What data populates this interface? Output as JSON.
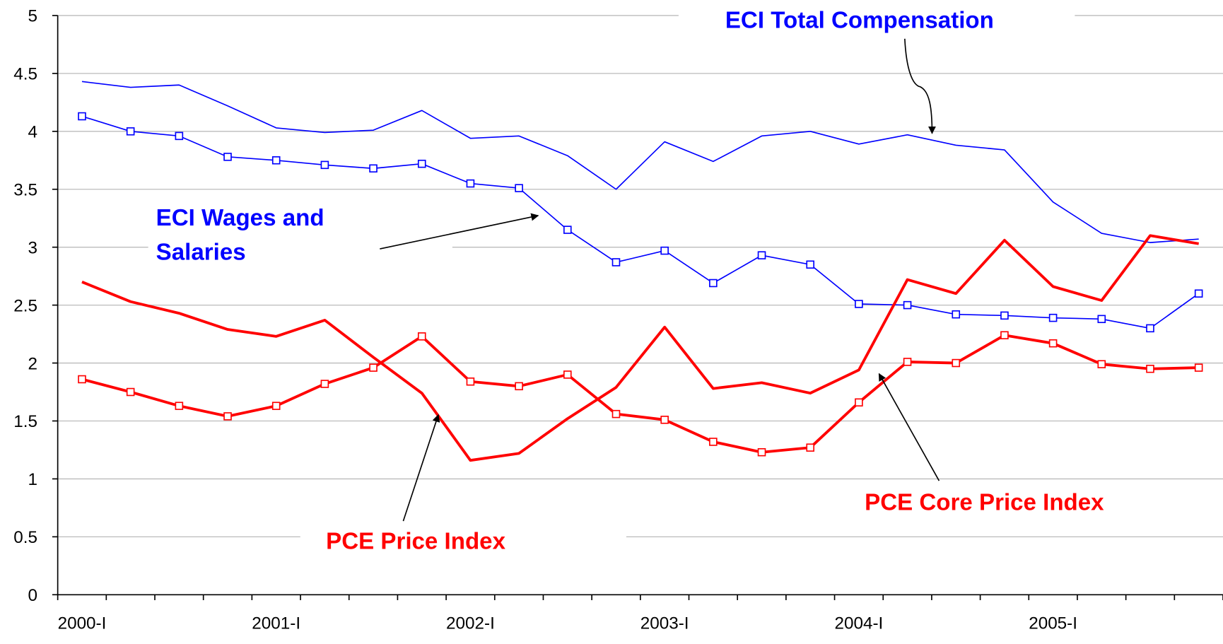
{
  "chart_data": {
    "type": "line",
    "categories": [
      "2000-I",
      null,
      null,
      null,
      "2001-I",
      null,
      null,
      null,
      "2002-I",
      null,
      null,
      null,
      "2003-I",
      null,
      null,
      null,
      "2004-I",
      null,
      null,
      null,
      "2005-I",
      null,
      null,
      null
    ],
    "series": [
      {
        "name": "ECI Total Compensation",
        "color": "#0000ff",
        "marker": false,
        "width": 1.5,
        "values": [
          4.43,
          4.38,
          4.4,
          4.22,
          4.03,
          3.99,
          4.01,
          4.18,
          3.94,
          3.96,
          3.79,
          3.5,
          3.91,
          3.74,
          3.96,
          4.0,
          3.89,
          3.97,
          3.88,
          3.84,
          3.39,
          3.12,
          3.04,
          3.07
        ]
      },
      {
        "name": "ECI Wages and Salaries",
        "color": "#0000ff",
        "marker": true,
        "width": 1.5,
        "values": [
          4.13,
          4.0,
          3.96,
          3.78,
          3.75,
          3.71,
          3.68,
          3.72,
          3.55,
          3.51,
          3.15,
          2.87,
          2.97,
          2.69,
          2.93,
          2.85,
          2.51,
          2.5,
          2.42,
          2.41,
          2.39,
          2.38,
          2.3,
          2.6
        ]
      },
      {
        "name": "PCE Price Index",
        "color": "#ff0000",
        "marker": false,
        "width": 3.5,
        "values": [
          2.7,
          2.53,
          2.43,
          2.29,
          2.23,
          2.37,
          2.05,
          1.74,
          1.16,
          1.22,
          1.52,
          1.79,
          2.31,
          1.78,
          1.83,
          1.74,
          1.94,
          2.72,
          2.6,
          3.06,
          2.66,
          2.54,
          3.1,
          3.03
        ]
      },
      {
        "name": "PCE Core Price Index",
        "color": "#ff0000",
        "marker": true,
        "width": 3.5,
        "values": [
          1.86,
          1.75,
          1.63,
          1.54,
          1.63,
          1.82,
          1.96,
          2.23,
          1.84,
          1.8,
          1.9,
          1.56,
          1.51,
          1.32,
          1.23,
          1.27,
          1.66,
          2.01,
          2.0,
          2.24,
          2.17,
          1.99,
          1.95,
          1.96
        ]
      }
    ],
    "ylim": [
      0,
      5
    ],
    "yticks": [
      0,
      0.5,
      1,
      1.5,
      2,
      2.5,
      3,
      3.5,
      4,
      4.5,
      5
    ],
    "grid": true
  }
}
